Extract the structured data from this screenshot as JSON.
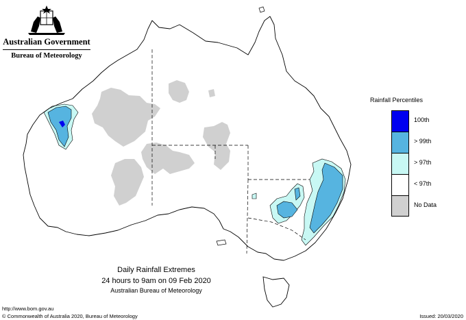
{
  "header": {
    "government": "Australian Government",
    "agency": "Bureau of Meteorology"
  },
  "legend": {
    "title": "Rainfall Percentiles",
    "items": [
      {
        "label": "100th",
        "color": "#0000f0"
      },
      {
        "label": "> 99th",
        "color": "#56b4e0"
      },
      {
        "label": "> 97th",
        "color": "#c8f8f4"
      },
      {
        "label": "< 97th",
        "color": "#ffffff"
      },
      {
        "label": "No Data",
        "color": "#d0d0d0"
      }
    ]
  },
  "caption": {
    "title": "Daily Rainfall Extremes",
    "period": "24 hours to 9am on 09 Feb 2020",
    "source": "Australian Bureau of Meteorology"
  },
  "footer": {
    "url": "http://www.bom.gov.au",
    "copyright": "© Commonwealth of Australia 2020, Bureau of Meteorology",
    "issued": "Issued: 20/03/2020"
  }
}
